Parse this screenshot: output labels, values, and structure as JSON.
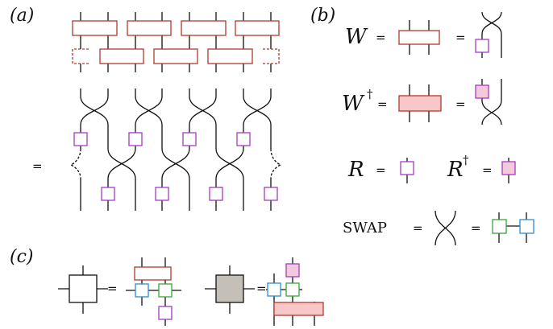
{
  "panel_a": {
    "label": "(a)",
    "equals": "="
  },
  "panel_b": {
    "label": "(b)",
    "w": {
      "symbol": "W",
      "equals": [
        "=",
        "="
      ]
    },
    "w_dagger": {
      "symbol": "W",
      "superscript": "†",
      "equals": [
        "=",
        "="
      ]
    },
    "r": {
      "symbol": "R",
      "equals": "="
    },
    "r_dagger": {
      "symbol": "R",
      "superscript": "†",
      "equals": "="
    },
    "swap": {
      "symbol": "SWAP",
      "equals": [
        "=",
        "="
      ]
    }
  },
  "panel_c": {
    "label": "(c)",
    "equals": [
      "=",
      "="
    ]
  }
}
